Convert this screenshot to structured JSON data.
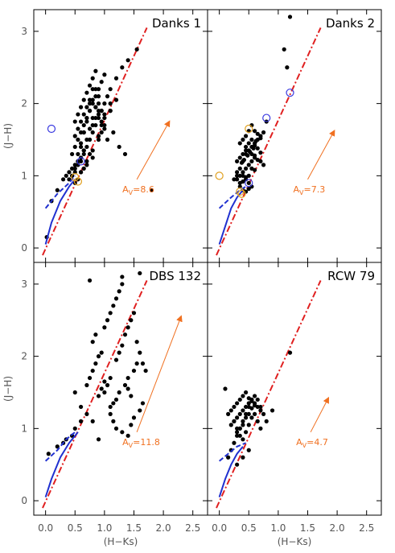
{
  "chart_data": [
    {
      "type": "scatter",
      "title": "Danks 1",
      "xlabel": "",
      "ylabel": "(J−H)",
      "xlim": [
        -0.2,
        2.75
      ],
      "ylim": [
        -0.2,
        3.3
      ],
      "av_label": {
        "prefix": "A",
        "sub": "V",
        "value": "=8.6"
      },
      "av_arrow": {
        "from": [
          1.55,
          0.95
        ],
        "to": [
          2.1,
          1.75
        ]
      },
      "reddening_line": {
        "from": [
          -0.05,
          -0.1
        ],
        "to": [
          1.72,
          3.05
        ]
      },
      "sequence_dash": {
        "x": [
          0.0,
          0.2,
          0.4,
          0.5
        ],
        "y": [
          0.55,
          0.75,
          0.9,
          1.0
        ]
      },
      "sequence_solid": {
        "x": [
          0.0,
          0.1,
          0.25,
          0.4,
          0.5
        ],
        "y": [
          0.05,
          0.35,
          0.65,
          0.85,
          0.95
        ]
      },
      "open_circles": [
        {
          "x": 0.1,
          "y": 1.65,
          "color": "#3a3ae0"
        },
        {
          "x": 0.6,
          "y": 1.2,
          "color": "#3a3ae0"
        },
        {
          "x": 0.5,
          "y": 0.98,
          "color": "#e0a020"
        },
        {
          "x": 0.55,
          "y": 0.92,
          "color": "#e0a020"
        }
      ],
      "points": {
        "x": [
          0.02,
          0.1,
          0.2,
          0.3,
          0.35,
          0.4,
          0.45,
          0.5,
          0.55,
          0.6,
          0.65,
          0.7,
          0.75,
          0.8,
          0.85,
          0.9,
          0.95,
          1.0,
          1.05,
          1.1,
          1.2,
          1.3,
          1.4,
          1.55,
          1.8,
          0.45,
          0.5,
          0.55,
          0.6,
          0.65,
          0.7,
          0.75,
          0.8,
          0.85,
          0.9,
          0.95,
          1.0,
          0.5,
          0.55,
          0.6,
          0.65,
          0.7,
          0.75,
          0.8,
          0.85,
          0.9,
          0.95,
          0.55,
          0.6,
          0.65,
          0.7,
          0.75,
          0.8,
          0.85,
          0.9,
          0.6,
          0.65,
          0.7,
          0.75,
          0.8,
          0.85,
          0.9,
          0.95,
          1.0,
          1.05,
          1.15,
          1.25,
          0.45,
          0.5,
          0.55,
          0.6,
          0.65,
          0.7,
          0.75,
          0.8,
          0.85,
          0.9,
          0.95,
          1.0,
          1.1,
          1.2,
          1.35,
          0.5,
          0.55,
          0.6,
          0.65,
          0.7,
          0.75,
          0.8,
          0.85,
          0.9,
          0.95,
          1.0,
          1.1,
          0.6,
          0.7,
          0.8,
          0.9,
          1.0,
          1.1,
          0.5,
          0.55,
          0.6,
          0.65,
          0.7,
          0.75,
          0.8,
          0.4,
          0.45,
          0.5,
          0.55,
          0.6,
          0.65
        ],
        "y": [
          0.15,
          0.65,
          0.8,
          0.95,
          1.0,
          1.05,
          1.1,
          1.15,
          1.2,
          1.25,
          1.3,
          1.4,
          1.5,
          1.6,
          1.7,
          1.8,
          1.9,
          2.0,
          2.1,
          2.2,
          2.35,
          2.5,
          2.6,
          2.75,
          0.8,
          1.3,
          1.4,
          1.5,
          1.6,
          1.7,
          1.8,
          1.9,
          2.0,
          2.1,
          2.2,
          2.3,
          2.4,
          1.55,
          1.65,
          1.75,
          1.85,
          1.95,
          2.05,
          1.7,
          1.8,
          1.9,
          1.6,
          1.3,
          1.45,
          1.6,
          1.75,
          1.9,
          2.05,
          2.2,
          1.5,
          1.2,
          1.35,
          1.5,
          1.65,
          1.8,
          1.95,
          2.1,
          1.7,
          1.8,
          1.5,
          1.6,
          1.4,
          1.0,
          1.1,
          1.2,
          1.4,
          1.6,
          1.8,
          2.0,
          2.2,
          1.95,
          1.85,
          1.75,
          1.65,
          1.9,
          2.05,
          1.3,
          1.75,
          1.85,
          1.95,
          2.05,
          2.15,
          2.25,
          2.35,
          2.45,
          2.0,
          1.9,
          1.85,
          2.0,
          1.05,
          1.15,
          1.25,
          1.55,
          1.7,
          1.9,
          0.9,
          0.95,
          1.05,
          1.1,
          1.2,
          1.3,
          1.35,
          0.95,
          1.0,
          1.05,
          1.15,
          1.25,
          1.35
        ]
      }
    },
    {
      "type": "scatter",
      "title": "Danks 2",
      "xlabel": "",
      "ylabel": "",
      "xlim": [
        -0.2,
        2.75
      ],
      "ylim": [
        -0.2,
        3.3
      ],
      "av_label": {
        "prefix": "A",
        "sub": "V",
        "value": "=7.3"
      },
      "av_arrow": {
        "from": [
          1.5,
          0.95
        ],
        "to": [
          1.95,
          1.62
        ]
      },
      "reddening_line": {
        "from": [
          -0.05,
          -0.1
        ],
        "to": [
          1.72,
          3.05
        ]
      },
      "sequence_dash": {
        "x": [
          0.0,
          0.2,
          0.35,
          0.45
        ],
        "y": [
          0.55,
          0.7,
          0.8,
          0.85
        ]
      },
      "sequence_solid": {
        "x": [
          0.0,
          0.1,
          0.2,
          0.3,
          0.4
        ],
        "y": [
          0.05,
          0.3,
          0.55,
          0.7,
          0.8
        ]
      },
      "open_circles": [
        {
          "x": 0.5,
          "y": 1.65,
          "color": "#e0a020"
        },
        {
          "x": 0.8,
          "y": 1.8,
          "color": "#3a3ae0"
        },
        {
          "x": 1.2,
          "y": 2.15,
          "color": "#3a3ae0"
        },
        {
          "x": 0.5,
          "y": 0.9,
          "color": "#3a3ae0"
        },
        {
          "x": 0.0,
          "y": 1.0,
          "color": "#e0a020"
        },
        {
          "x": 0.35,
          "y": 0.78,
          "color": "#e0a020"
        },
        {
          "x": 0.38,
          "y": 0.75,
          "color": "#e0a020"
        }
      ],
      "points": {
        "x": [
          1.2,
          1.1,
          1.15,
          0.8,
          0.75,
          0.7,
          0.65,
          0.6,
          0.55,
          0.5,
          0.45,
          0.4,
          0.35,
          0.3,
          0.25,
          0.55,
          0.6,
          0.65,
          0.7,
          0.5,
          0.45,
          0.4,
          0.35,
          0.6,
          0.55,
          0.5,
          0.45,
          0.4,
          0.35,
          0.3,
          0.45,
          0.5,
          0.55,
          0.6,
          0.65,
          0.7,
          0.75,
          0.4,
          0.45,
          0.5,
          0.55,
          0.35,
          0.4,
          0.45,
          0.5,
          0.3,
          0.35,
          0.4,
          0.45,
          0.5,
          0.55,
          0.6,
          0.65,
          0.7,
          0.55,
          0.6,
          0.5,
          0.45,
          0.4,
          0.35,
          0.3,
          0.38,
          0.42,
          0.48,
          0.52,
          0.58,
          0.62
        ],
        "y": [
          3.2,
          2.75,
          2.5,
          1.75,
          1.6,
          1.55,
          1.5,
          1.45,
          1.4,
          1.35,
          1.3,
          1.2,
          1.1,
          1.0,
          0.95,
          1.7,
          1.62,
          1.58,
          1.52,
          1.62,
          1.55,
          1.5,
          1.45,
          1.25,
          1.2,
          1.15,
          1.1,
          1.05,
          1.0,
          0.95,
          1.4,
          1.35,
          1.3,
          1.28,
          1.22,
          1.2,
          1.15,
          1.0,
          0.95,
          0.9,
          0.85,
          0.85,
          0.8,
          0.78,
          0.82,
          1.2,
          1.25,
          1.3,
          1.35,
          1.45,
          1.5,
          1.42,
          1.38,
          1.32,
          1.1,
          1.08,
          1.0,
          0.98,
          0.92,
          0.9,
          1.05,
          1.18,
          1.22,
          1.28,
          1.33,
          1.38,
          1.48
        ]
      }
    },
    {
      "type": "scatter",
      "title": "DBS 132",
      "xlabel": "(H−Ks)",
      "ylabel": "(J−H)",
      "xlim": [
        -0.2,
        2.75
      ],
      "ylim": [
        -0.2,
        3.3
      ],
      "av_label": {
        "prefix": "A",
        "sub": "V",
        "value": "=11.8"
      },
      "av_arrow": {
        "from": [
          1.55,
          0.95
        ],
        "to": [
          2.3,
          2.55
        ]
      },
      "reddening_line": {
        "from": [
          -0.05,
          -0.1
        ],
        "to": [
          1.72,
          3.05
        ]
      },
      "sequence_dash": {
        "x": [
          0.0,
          0.2,
          0.35,
          0.5
        ],
        "y": [
          0.55,
          0.7,
          0.85,
          0.95
        ]
      },
      "sequence_solid": {
        "x": [
          0.0,
          0.1,
          0.25,
          0.4,
          0.55
        ],
        "y": [
          0.05,
          0.3,
          0.6,
          0.8,
          0.95
        ]
      },
      "open_circles": [],
      "points": {
        "x": [
          0.05,
          0.2,
          0.3,
          0.35,
          0.45,
          0.5,
          0.6,
          0.7,
          0.75,
          0.8,
          0.85,
          0.9,
          0.95,
          1.0,
          1.05,
          1.1,
          1.2,
          1.25,
          1.3,
          1.35,
          1.4,
          1.45,
          1.5,
          1.55,
          1.6,
          1.65,
          1.7,
          0.75,
          1.3,
          1.6,
          0.9,
          0.95,
          1.0,
          1.1,
          1.15,
          1.2,
          1.25,
          1.35,
          1.4,
          1.5,
          1.55,
          1.1,
          1.15,
          1.2,
          1.3,
          1.4,
          1.45,
          1.5,
          1.6,
          1.65,
          0.8,
          0.85,
          1.0,
          1.05,
          1.1,
          1.15,
          1.2,
          1.25,
          1.3,
          1.4,
          1.45,
          0.5,
          0.6,
          0.7,
          0.8,
          0.9
        ],
        "y": [
          0.65,
          0.75,
          0.8,
          0.85,
          0.9,
          1.0,
          1.1,
          1.6,
          1.7,
          1.8,
          1.9,
          2.0,
          2.05,
          1.5,
          1.6,
          1.7,
          1.95,
          2.05,
          2.15,
          2.3,
          2.4,
          2.5,
          2.6,
          2.2,
          2.05,
          1.9,
          1.8,
          3.05,
          3.1,
          3.15,
          1.45,
          1.55,
          1.65,
          1.3,
          1.35,
          1.4,
          1.5,
          1.6,
          1.7,
          1.8,
          1.9,
          1.2,
          1.1,
          1.0,
          0.95,
          0.9,
          1.05,
          1.15,
          1.25,
          1.35,
          2.2,
          2.3,
          2.4,
          2.5,
          2.6,
          2.7,
          2.8,
          2.9,
          3.0,
          1.55,
          1.45,
          1.5,
          1.3,
          1.2,
          1.1,
          0.85
        ]
      }
    },
    {
      "type": "scatter",
      "title": "RCW 79",
      "xlabel": "(H−Ks)",
      "ylabel": "",
      "xlim": [
        -0.2,
        2.75
      ],
      "ylim": [
        -0.2,
        3.3
      ],
      "av_label": {
        "prefix": "A",
        "sub": "V",
        "value": "=4.7"
      },
      "av_arrow": {
        "from": [
          1.55,
          0.95
        ],
        "to": [
          1.85,
          1.42
        ]
      },
      "reddening_line": {
        "from": [
          -0.05,
          -0.1
        ],
        "to": [
          1.72,
          3.05
        ]
      },
      "sequence_dash": {
        "x": [
          0.0,
          0.15,
          0.3,
          0.45
        ],
        "y": [
          0.55,
          0.65,
          0.75,
          0.8
        ]
      },
      "sequence_solid": {
        "x": [
          0.0,
          0.1,
          0.2,
          0.3,
          0.4
        ],
        "y": [
          0.05,
          0.3,
          0.5,
          0.65,
          0.75
        ]
      },
      "open_circles": [],
      "points": {
        "x": [
          0.1,
          0.15,
          0.2,
          0.25,
          0.3,
          0.35,
          0.4,
          0.45,
          0.5,
          0.55,
          0.6,
          0.65,
          0.7,
          0.75,
          0.8,
          0.9,
          1.2,
          0.2,
          0.25,
          0.3,
          0.35,
          0.4,
          0.45,
          0.5,
          0.55,
          0.6,
          0.65,
          0.7,
          0.3,
          0.35,
          0.4,
          0.45,
          0.5,
          0.55,
          0.6,
          0.25,
          0.3,
          0.35,
          0.4,
          0.45,
          0.5,
          0.55,
          0.15,
          0.2,
          0.25,
          0.3,
          0.35,
          0.4,
          0.45,
          0.5,
          0.55,
          0.6,
          0.65,
          0.7,
          0.3,
          0.4,
          0.5
        ],
        "y": [
          1.55,
          0.6,
          0.7,
          0.8,
          0.9,
          1.0,
          1.1,
          1.2,
          1.3,
          1.4,
          1.45,
          1.4,
          1.3,
          1.2,
          1.1,
          1.25,
          2.05,
          1.05,
          1.1,
          1.15,
          1.2,
          1.25,
          1.3,
          1.35,
          1.4,
          1.35,
          1.3,
          1.25,
          0.95,
          1.0,
          1.05,
          1.15,
          1.2,
          1.28,
          1.32,
          1.3,
          1.35,
          1.4,
          1.45,
          1.5,
          1.42,
          1.38,
          1.2,
          1.25,
          1.1,
          1.0,
          0.9,
          0.85,
          0.95,
          1.05,
          1.15,
          1.2,
          1.1,
          1.0,
          0.5,
          0.6,
          0.7
        ]
      }
    }
  ]
}
